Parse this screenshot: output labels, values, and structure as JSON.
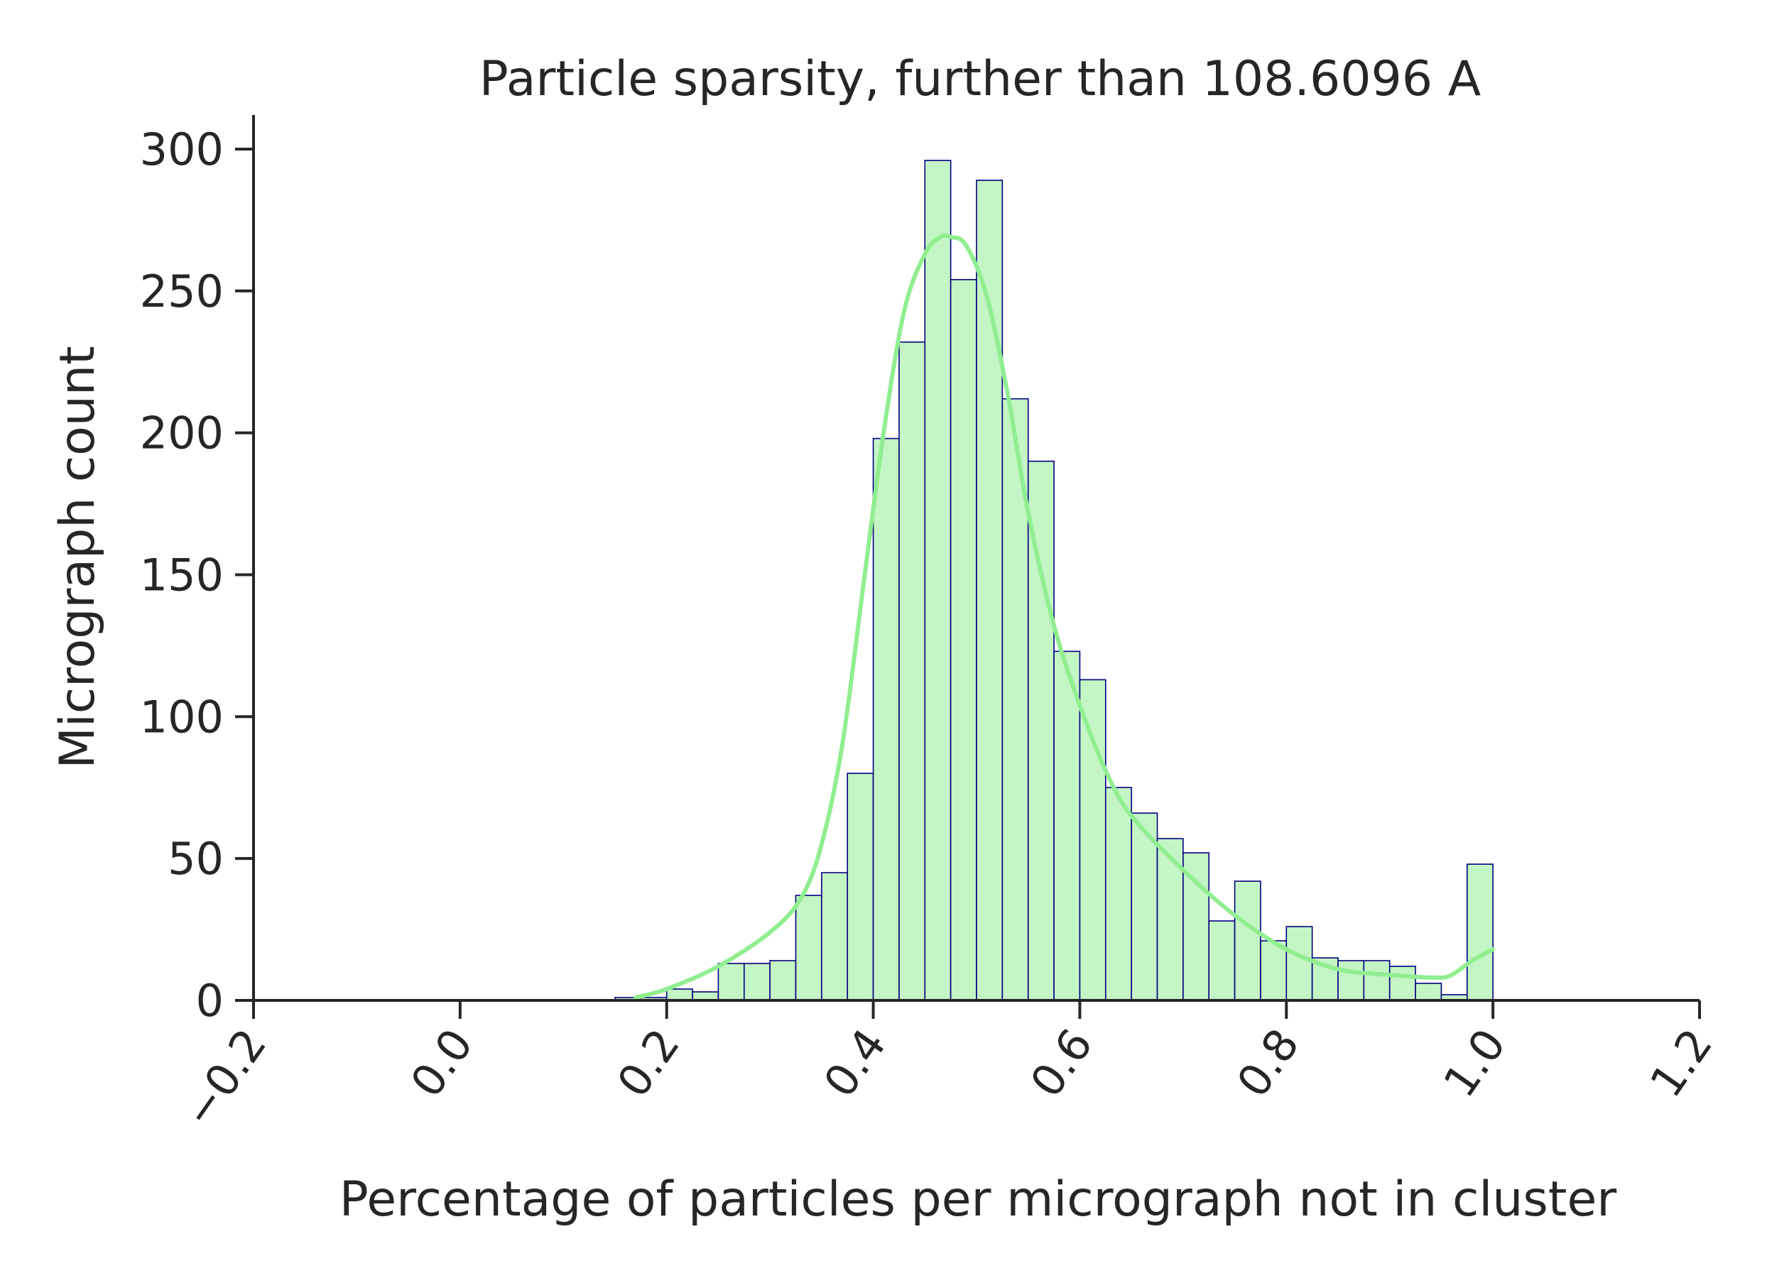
{
  "chart_data": {
    "type": "bar",
    "title": "Particle sparsity, further than 108.6096 A",
    "xlabel": "Percentage of particles per micrograph not in cluster",
    "ylabel": "Micrograph count",
    "xlim": [
      -0.2,
      1.2
    ],
    "ylim": [
      0,
      312
    ],
    "xticks": [
      -0.2,
      0.0,
      0.2,
      0.4,
      0.6,
      0.8,
      1.0,
      1.2
    ],
    "xtick_labels": [
      "−0.2",
      "0.0",
      "0.2",
      "0.4",
      "0.6",
      "0.8",
      "1.0",
      "1.2"
    ],
    "yticks": [
      0,
      50,
      100,
      150,
      200,
      250,
      300
    ],
    "ytick_labels": [
      "0",
      "50",
      "100",
      "150",
      "200",
      "250",
      "300"
    ],
    "bin_width": 0.025,
    "bin_starts": [
      0.15,
      0.175,
      0.2,
      0.225,
      0.25,
      0.275,
      0.3,
      0.325,
      0.35,
      0.375,
      0.4,
      0.425,
      0.45,
      0.475,
      0.5,
      0.525,
      0.55,
      0.575,
      0.6,
      0.625,
      0.65,
      0.675,
      0.7,
      0.725,
      0.75,
      0.775,
      0.8,
      0.825,
      0.85,
      0.875,
      0.9,
      0.925,
      0.95,
      0.975
    ],
    "counts": [
      1,
      1,
      4,
      3,
      13,
      13,
      14,
      37,
      45,
      80,
      198,
      232,
      296,
      254,
      289,
      212,
      190,
      123,
      113,
      75,
      66,
      57,
      52,
      28,
      42,
      21,
      26,
      15,
      14,
      14,
      12,
      6,
      2,
      48
    ],
    "kde": {
      "x": [
        0.17,
        0.2,
        0.25,
        0.3,
        0.33,
        0.35,
        0.37,
        0.39,
        0.41,
        0.43,
        0.45,
        0.465,
        0.475,
        0.49,
        0.51,
        0.53,
        0.55,
        0.575,
        0.6,
        0.625,
        0.65,
        0.7,
        0.75,
        0.8,
        0.85,
        0.9,
        0.945,
        0.96,
        0.98,
        1.0
      ],
      "y": [
        1,
        4,
        12,
        24,
        36,
        55,
        90,
        145,
        200,
        243,
        263,
        269,
        269,
        266,
        248,
        214,
        172,
        132,
        104,
        81,
        65,
        46,
        30,
        18,
        11,
        9,
        8,
        9,
        14,
        18
      ]
    },
    "colors": {
      "bar_fill": "#c4f5c4",
      "bar_edge": "#000080",
      "kde_line": "#90ee90",
      "axis": "#262626",
      "text": "#262626"
    },
    "grid": false,
    "legend": "none"
  }
}
